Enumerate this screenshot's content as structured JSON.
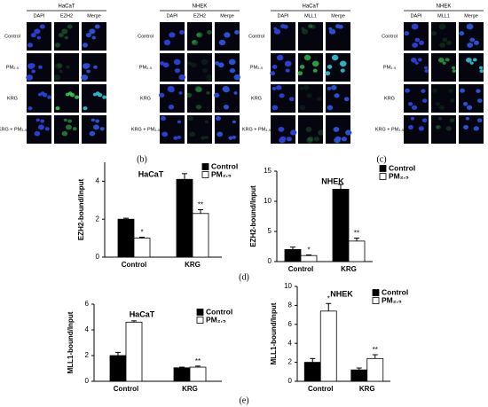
{
  "panels": [
    {
      "title": "HaCaT",
      "columns": [
        "DAPI",
        "EZH2",
        "Merge"
      ],
      "rows": [
        "Control",
        "PM₂.₅",
        "KRG",
        "KRG + PM₂.₅"
      ]
    },
    {
      "title": "NHEK",
      "columns": [
        "DAPI",
        "EZH2",
        "Merge"
      ],
      "rows": [
        "Control",
        "PM₂.₅",
        "KRG",
        "KRG + PM₂.₅"
      ]
    },
    {
      "title": "HaCaT",
      "columns": [
        "DAPI",
        "MLL1",
        "Merge"
      ],
      "rows": [
        "Control",
        "PM₂.₅",
        "KRG",
        "KRG + PM₂.₅"
      ]
    },
    {
      "title": "NHEK",
      "columns": [
        "DAPI",
        "MLL1",
        "Merge"
      ],
      "rows": [
        "Control",
        "PM₂.₅",
        "KRG",
        "KRG + PM₂.₅"
      ]
    }
  ],
  "panel_labels": [
    "(b)",
    "(c)",
    "(d)",
    "(e)"
  ],
  "chart_data": [
    {
      "type": "bar",
      "title": "HaCaT",
      "y_label": "EZH2-bound/Input",
      "categories": [
        "Control",
        "KRG"
      ],
      "series": [
        {
          "name": "Control",
          "color": "#000000",
          "values": [
            2.0,
            4.1
          ],
          "errors": [
            0.05,
            0.3
          ]
        },
        {
          "name": "PM₂.₅",
          "color": "#ffffff",
          "values": [
            1.0,
            2.3
          ],
          "errors": [
            0.05,
            0.2
          ],
          "marks": [
            "*",
            "**"
          ]
        }
      ],
      "ylim": [
        0,
        5
      ],
      "yticks": [
        0,
        2,
        4
      ]
    },
    {
      "type": "bar",
      "title": "NHEK",
      "y_label": "EZH2-bound/Input",
      "categories": [
        "Control",
        "KRG"
      ],
      "series": [
        {
          "name": "Control",
          "color": "#000000",
          "values": [
            2.0,
            12.0
          ],
          "errors": [
            0.4,
            0.8
          ]
        },
        {
          "name": "PM₂.₅",
          "color": "#ffffff",
          "values": [
            1.0,
            3.4
          ],
          "errors": [
            0.1,
            0.5
          ],
          "marks": [
            "*",
            "**"
          ]
        }
      ],
      "ylim": [
        0,
        15
      ],
      "yticks": [
        0,
        5,
        10,
        15
      ]
    },
    {
      "type": "bar",
      "title": "HaCaT",
      "y_label": "MLL1-bound/Input",
      "categories": [
        "Control",
        "KRG"
      ],
      "series": [
        {
          "name": "Control",
          "color": "#000000",
          "values": [
            2.0,
            1.05
          ],
          "errors": [
            0.25,
            0.05
          ]
        },
        {
          "name": "PM₂.₅",
          "color": "#ffffff",
          "values": [
            4.6,
            1.1
          ],
          "errors": [
            0.1,
            0.08
          ],
          "marks": [
            "*",
            "**"
          ]
        }
      ],
      "ylim": [
        0,
        6
      ],
      "yticks": [
        0,
        2,
        4,
        6
      ]
    },
    {
      "type": "bar",
      "title": "NHEK",
      "y_label": "MLL1-bound/Input",
      "categories": [
        "Control",
        "KRG"
      ],
      "series": [
        {
          "name": "Control",
          "color": "#000000",
          "values": [
            2.0,
            1.2
          ],
          "errors": [
            0.4,
            0.2
          ]
        },
        {
          "name": "PM₂.₅",
          "color": "#ffffff",
          "values": [
            7.4,
            2.4
          ],
          "errors": [
            0.8,
            0.4
          ],
          "marks": [
            "*",
            "**"
          ]
        }
      ],
      "ylim": [
        0,
        10
      ],
      "yticks": [
        0,
        2,
        4,
        6,
        8,
        10
      ]
    }
  ]
}
